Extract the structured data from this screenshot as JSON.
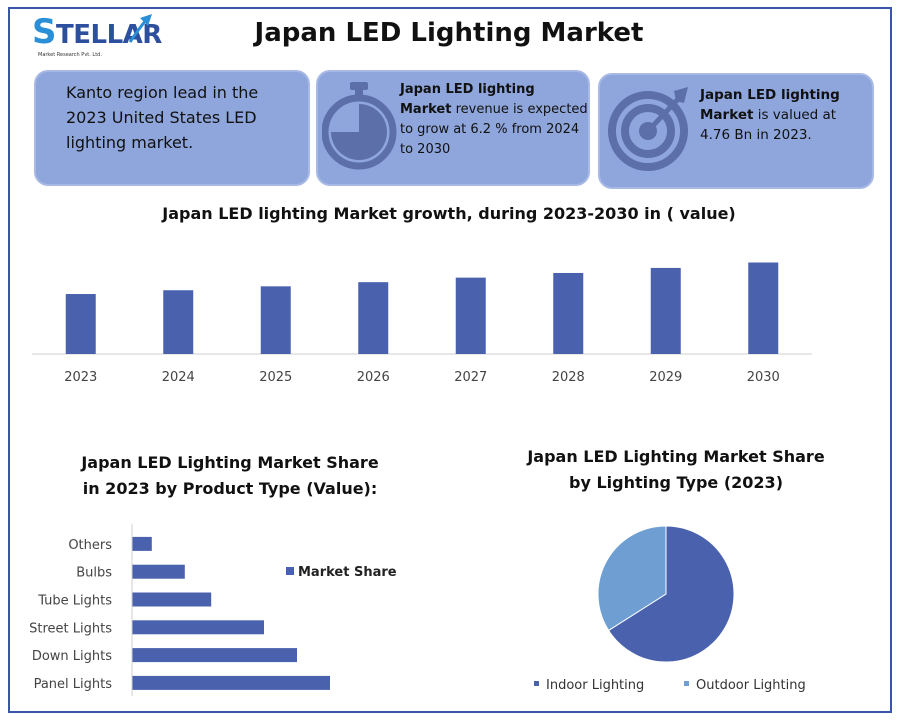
{
  "logo": {
    "text_s": "S",
    "text_rest": "TELLAR",
    "tagline": "Market Research Pvt. Ltd."
  },
  "title": "Japan LED Lighting Market",
  "cards": {
    "card1": {
      "text": "Kanto region lead in the 2023 United States LED lighting market.",
      "icon": "none"
    },
    "card2": {
      "bold": "Japan LED lighting Market",
      "rest": " revenue is expected to grow at 6.2 % from 2024 to 2030",
      "icon": "stopwatch-icon"
    },
    "card3": {
      "bold": "Japan LED lighting Market",
      "rest": " is valued at 4.76 Bn in 2023.",
      "icon": "target-icon"
    }
  },
  "colors": {
    "bar": "#4a62ae",
    "card": "#8fa6dc",
    "pie_indoor": "#4a62ae",
    "pie_outdoor": "#6f9fd2",
    "border": "#3a56a8"
  },
  "chart_data": [
    {
      "type": "bar",
      "title": "Japan LED lighting Market growth, during 2023-2030 in ( value)",
      "categories": [
        "2023",
        "2024",
        "2025",
        "2026",
        "2027",
        "2028",
        "2029",
        "2030"
      ],
      "values": [
        4.76,
        5.06,
        5.37,
        5.7,
        6.06,
        6.43,
        6.83,
        7.26
      ],
      "xlabel": "",
      "ylabel": "",
      "ylim": [
        0,
        7.3
      ],
      "grid": false
    },
    {
      "type": "bar",
      "orientation": "horizontal",
      "title_line1": "Japan LED Lighting Market Share",
      "title_line2": "in 2023 by Product Type (Value):",
      "categories": [
        "Others",
        "Bulbs",
        "Tube Lights",
        "Street Lights",
        "Down Lights",
        "Panel Lights"
      ],
      "values": [
        6,
        16,
        24,
        40,
        50,
        60
      ],
      "series_name": "Market Share",
      "legend": "right"
    },
    {
      "type": "pie",
      "title_line1": "Japan LED Lighting Market Share",
      "title_line2": "by Lighting Type (2023)",
      "labels": [
        "Indoor Lighting",
        "Outdoor Lighting"
      ],
      "values": [
        66,
        34
      ],
      "legend": "bottom"
    }
  ]
}
